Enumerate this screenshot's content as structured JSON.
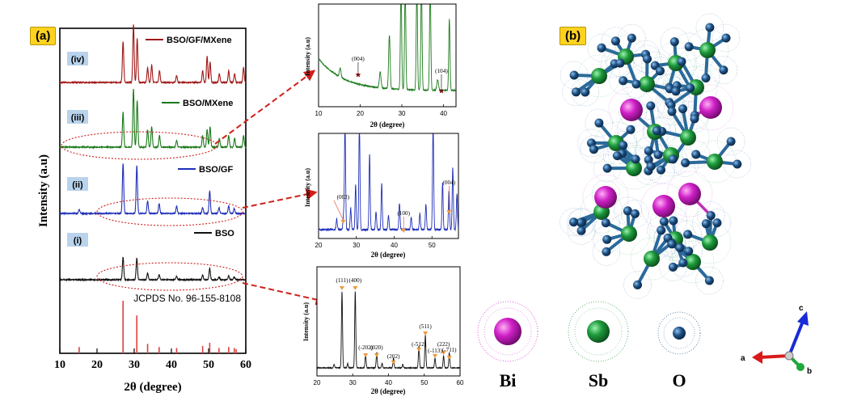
{
  "panel_a": {
    "label": "(a)",
    "main": {
      "xlabel": "2θ (degree)",
      "ylabel": "Intensity (a.u)",
      "xlim": [
        10,
        60
      ],
      "xticks": [
        "10",
        "20",
        "30",
        "40",
        "50",
        "60"
      ],
      "reference_label": "JCPDS No. 96-155-8108",
      "reference_sticks": [
        {
          "x": 15.2,
          "h": 0.12
        },
        {
          "x": 27.0,
          "h": 1.0
        },
        {
          "x": 30.7,
          "h": 0.72
        },
        {
          "x": 33.6,
          "h": 0.18
        },
        {
          "x": 36.7,
          "h": 0.12
        },
        {
          "x": 41.4,
          "h": 0.1
        },
        {
          "x": 48.4,
          "h": 0.14
        },
        {
          "x": 50.3,
          "h": 0.2
        },
        {
          "x": 52.8,
          "h": 0.1
        },
        {
          "x": 55.4,
          "h": 0.12
        },
        {
          "x": 56.9,
          "h": 0.1
        },
        {
          "x": 57.4,
          "h": 0.08
        }
      ],
      "patterns": [
        {
          "tag": "(iv)",
          "legend": "BSO/GF/MXene",
          "color": "#a01818",
          "peaks": [
            {
              "x": 27.0,
              "h": 0.7
            },
            {
              "x": 29.8,
              "h": 1.0
            },
            {
              "x": 30.8,
              "h": 0.75
            },
            {
              "x": 33.6,
              "h": 0.25
            },
            {
              "x": 34.7,
              "h": 0.3
            },
            {
              "x": 36.8,
              "h": 0.2
            },
            {
              "x": 41.4,
              "h": 0.12
            },
            {
              "x": 48.4,
              "h": 0.2
            },
            {
              "x": 49.6,
              "h": 0.45
            },
            {
              "x": 50.4,
              "h": 0.35
            },
            {
              "x": 52.9,
              "h": 0.15
            },
            {
              "x": 55.4,
              "h": 0.2
            },
            {
              "x": 57.0,
              "h": 0.15
            },
            {
              "x": 59.4,
              "h": 0.25
            }
          ]
        },
        {
          "tag": "(iii)",
          "legend": "BSO/MXene",
          "color": "#1a7a1a",
          "peaks": [
            {
              "x": 27.0,
              "h": 0.6
            },
            {
              "x": 29.8,
              "h": 1.0
            },
            {
              "x": 30.8,
              "h": 0.8
            },
            {
              "x": 33.6,
              "h": 0.3
            },
            {
              "x": 34.7,
              "h": 0.35
            },
            {
              "x": 36.8,
              "h": 0.2
            },
            {
              "x": 41.4,
              "h": 0.12
            },
            {
              "x": 48.4,
              "h": 0.2
            },
            {
              "x": 49.6,
              "h": 0.3
            },
            {
              "x": 50.4,
              "h": 0.35
            },
            {
              "x": 52.9,
              "h": 0.15
            },
            {
              "x": 55.4,
              "h": 0.2
            },
            {
              "x": 57.0,
              "h": 0.15
            },
            {
              "x": 59.4,
              "h": 0.2
            }
          ]
        },
        {
          "tag": "(ii)",
          "legend": "BSO/GF",
          "color": "#1f2fb8",
          "peaks": [
            {
              "x": 15.2,
              "h": 0.08
            },
            {
              "x": 27.0,
              "h": 1.0
            },
            {
              "x": 30.7,
              "h": 0.95
            },
            {
              "x": 33.6,
              "h": 0.25
            },
            {
              "x": 36.7,
              "h": 0.2
            },
            {
              "x": 41.4,
              "h": 0.15
            },
            {
              "x": 48.4,
              "h": 0.12
            },
            {
              "x": 50.3,
              "h": 0.45
            },
            {
              "x": 52.8,
              "h": 0.12
            },
            {
              "x": 55.4,
              "h": 0.15
            },
            {
              "x": 56.9,
              "h": 0.1
            }
          ]
        },
        {
          "tag": "(i)",
          "legend": "BSO",
          "color": "#111111",
          "peaks": [
            {
              "x": 27.0,
              "h": 1.0
            },
            {
              "x": 30.7,
              "h": 0.95
            },
            {
              "x": 33.6,
              "h": 0.3
            },
            {
              "x": 36.7,
              "h": 0.22
            },
            {
              "x": 41.4,
              "h": 0.15
            },
            {
              "x": 48.4,
              "h": 0.2
            },
            {
              "x": 50.3,
              "h": 0.5
            },
            {
              "x": 52.8,
              "h": 0.12
            },
            {
              "x": 55.4,
              "h": 0.18
            },
            {
              "x": 56.9,
              "h": 0.12
            }
          ]
        }
      ]
    },
    "inset_top": {
      "ylabel": "Intensity (a.u)",
      "xlabel": "2θ (degree)",
      "xlim": [
        10,
        43
      ],
      "xticks": [
        "10",
        "20",
        "30",
        "40"
      ],
      "color": "#1a7a1a",
      "annotations": [
        {
          "text": "(004)",
          "x": 19.5
        },
        {
          "text": "(104)",
          "x": 39.5
        }
      ]
    },
    "inset_mid": {
      "ylabel": "Intensity (a.u)",
      "xlabel": "2θ (degree)",
      "xlim": [
        20,
        57
      ],
      "xticks": [
        "20",
        "30",
        "40",
        "50"
      ],
      "color": "#1f2fb8",
      "annotations": [
        {
          "text": "(002)",
          "x": 26.5
        },
        {
          "text": "(100)",
          "x": 42.5
        },
        {
          "text": "(004)",
          "x": 54.5
        }
      ]
    },
    "inset_bottom": {
      "ylabel": "Intensity (a.u)",
      "xlabel": "2θ (degree)",
      "xlim": [
        20,
        60
      ],
      "xticks": [
        "20",
        "30",
        "40",
        "50",
        "60"
      ],
      "color": "#111111",
      "annotations": [
        {
          "text": "(111)",
          "x": 27.0
        },
        {
          "text": "(400)",
          "x": 30.7
        },
        {
          "text": "(-202)",
          "x": 33.6
        },
        {
          "text": "(020)",
          "x": 36.7
        },
        {
          "text": "(202)",
          "x": 41.4
        },
        {
          "text": "(-512)",
          "x": 48.5
        },
        {
          "text": "(511)",
          "x": 50.3
        },
        {
          "text": "(-113)",
          "x": 53.0
        },
        {
          "text": "(222)",
          "x": 55.4
        },
        {
          "text": "(-711)",
          "x": 57.0
        }
      ]
    }
  },
  "panel_b": {
    "label": "(b)",
    "legend": [
      {
        "symbol": "Bi",
        "color": "#d020c8"
      },
      {
        "symbol": "Sb",
        "color": "#1e9a3c"
      },
      {
        "symbol": "O",
        "color": "#1d4f82"
      }
    ],
    "axes": {
      "a": "a",
      "b": "b",
      "c": "c"
    }
  }
}
